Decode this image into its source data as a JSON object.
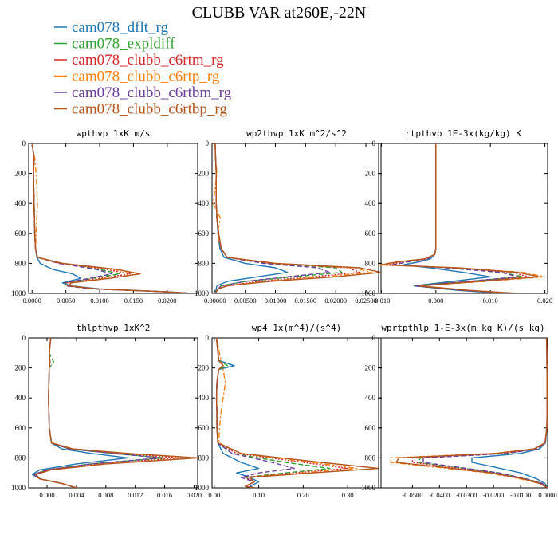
{
  "title": "CLUBB VAR at260E,-22N",
  "legend": [
    {
      "label": "cam078_dflt_rg",
      "color": "#1f77b4",
      "dash": "solid"
    },
    {
      "label": "cam078_expldiff",
      "color": "#2ca02c",
      "dash": "dashed"
    },
    {
      "label": "cam078_clubb_c6rtm_rg",
      "color": "#d62728",
      "dash": "dotted"
    },
    {
      "label": "cam078_clubb_c6rtp_rg",
      "color": "#ff7f0e",
      "dash": "dashdot"
    },
    {
      "label": "cam078_clubb_c6rtbm_rg",
      "color": "#6a3d9a",
      "dash": "dashed"
    },
    {
      "label": "cam078_clubb_c6rtbp_rg",
      "color": "#b5541c",
      "dash": "solid"
    }
  ],
  "chart_data": [
    {
      "type": "line",
      "title": "wpthvp  1xK m/s",
      "xlim": [
        -0.0005,
        0.0245
      ],
      "ylim": [
        1000,
        0
      ],
      "xticks": [
        0.0,
        0.005,
        0.01,
        0.015,
        0.02
      ],
      "xticklabels": [
        "0.0000",
        "0.0050",
        "0.0100",
        "0.0150",
        "0.0200"
      ],
      "yticks": [
        0,
        200,
        400,
        600,
        800,
        1000
      ],
      "y": [
        0,
        100,
        200,
        400,
        600,
        700,
        760,
        800,
        840,
        870,
        900,
        930,
        950,
        970,
        990,
        1000
      ],
      "series": [
        {
          "values": [
            0.0,
            0.0003,
            0.0002,
            0.0003,
            0.0004,
            0.0005,
            0.0007,
            0.0012,
            0.003,
            0.006,
            0.0072,
            0.0045,
            0.0058,
            0.01,
            0.02,
            0.0235
          ]
        },
        {
          "values": [
            0.0,
            0.0003,
            0.0002,
            0.0003,
            0.0004,
            0.0005,
            0.0008,
            0.004,
            0.01,
            0.013,
            0.009,
            0.005,
            0.005,
            0.009,
            0.02,
            0.0235
          ]
        },
        {
          "values": [
            0.0,
            0.0003,
            0.0002,
            0.0003,
            0.0004,
            0.0005,
            0.0008,
            0.004,
            0.011,
            0.0145,
            0.01,
            0.0052,
            0.0052,
            0.0095,
            0.02,
            0.0235
          ]
        },
        {
          "values": [
            0.0,
            0.0004,
            0.0006,
            0.0008,
            0.0006,
            0.0005,
            0.0008,
            0.0045,
            0.012,
            0.0158,
            0.011,
            0.0055,
            0.0055,
            0.0095,
            0.02,
            0.0235
          ]
        },
        {
          "values": [
            0.0,
            0.0003,
            0.0002,
            0.0003,
            0.0004,
            0.0005,
            0.0008,
            0.004,
            0.0095,
            0.0118,
            0.0085,
            0.0048,
            0.005,
            0.009,
            0.02,
            0.0235
          ]
        },
        {
          "values": [
            0.0,
            0.0003,
            0.0002,
            0.0003,
            0.0004,
            0.0005,
            0.0008,
            0.0045,
            0.0125,
            0.016,
            0.0115,
            0.0058,
            0.0055,
            0.0095,
            0.02,
            0.0235
          ]
        }
      ]
    },
    {
      "type": "line",
      "title": "wp2thvp  1xK m^2/s^2",
      "xlim": [
        -0.0005,
        0.0275
      ],
      "ylim": [
        1000,
        0
      ],
      "xticks": [
        0.0,
        0.005,
        0.01,
        0.015,
        0.02,
        0.025
      ],
      "xticklabels": [
        "0.00000",
        "0.00500",
        "0.01000",
        "0.01500",
        "0.02000",
        "0.02500"
      ],
      "yticks": [
        0,
        200,
        400,
        600,
        800,
        1000
      ],
      "y": [
        0,
        100,
        200,
        400,
        500,
        600,
        700,
        760,
        800,
        830,
        860,
        890,
        920,
        950,
        970,
        990,
        1000
      ],
      "series": [
        {
          "values": [
            0.0,
            0.0001,
            0.0002,
            0.0002,
            0.0003,
            0.0005,
            0.0008,
            0.0015,
            0.005,
            0.01,
            0.012,
            0.007,
            0.002,
            0.0003,
            0.0002,
            0.0001,
            0.0
          ]
        },
        {
          "values": [
            0.0,
            0.0001,
            0.0002,
            0.0002,
            0.0003,
            0.0006,
            0.001,
            0.002,
            0.009,
            0.02,
            0.021,
            0.013,
            0.005,
            0.001,
            0.0005,
            0.0002,
            0.0
          ]
        },
        {
          "values": [
            0.0,
            0.0001,
            0.0002,
            0.0002,
            0.0003,
            0.0006,
            0.001,
            0.002,
            0.009,
            0.022,
            0.024,
            0.016,
            0.007,
            0.002,
            0.0005,
            0.0002,
            0.0
          ]
        },
        {
          "values": [
            0.0,
            0.0001,
            0.0003,
            -0.0003,
            0.0009,
            0.0004,
            0.001,
            0.002,
            0.01,
            0.023,
            0.026,
            0.018,
            0.008,
            0.002,
            0.0005,
            0.0002,
            0.0
          ]
        },
        {
          "values": [
            0.0,
            0.0001,
            0.0002,
            0.0002,
            0.0003,
            0.0006,
            0.001,
            0.002,
            0.008,
            0.017,
            0.019,
            0.012,
            0.005,
            0.001,
            0.0005,
            0.0002,
            0.0
          ]
        },
        {
          "values": [
            0.0,
            0.0001,
            0.0002,
            0.0002,
            0.0003,
            0.0006,
            0.001,
            0.002,
            0.01,
            0.024,
            0.0275,
            0.02,
            0.009,
            0.002,
            0.0005,
            0.0002,
            0.0
          ]
        }
      ]
    },
    {
      "type": "line",
      "title": "rtpthvp  1E-3x(kg/kg) K",
      "xlim": [
        -0.0105,
        0.0205
      ],
      "ylim": [
        1000,
        0
      ],
      "xticks": [
        -0.01,
        0.0,
        0.01,
        0.02
      ],
      "xticklabels": [
        "-0.010",
        "0.000",
        "0.010",
        "0.020"
      ],
      "yticks": [
        0,
        200,
        400,
        600,
        800,
        1000
      ],
      "y": [
        0,
        200,
        400,
        600,
        700,
        740,
        770,
        790,
        810,
        830,
        860,
        890,
        920,
        950,
        980,
        1000
      ],
      "series": [
        {
          "values": [
            0.0,
            0.0,
            0.0,
            0.0,
            0.0,
            -0.0002,
            -0.001,
            -0.003,
            -0.006,
            -0.001,
            0.005,
            0.01,
            0.003,
            -0.004,
            0.004,
            0.012
          ]
        },
        {
          "values": [
            0.0,
            0.0,
            0.0,
            0.0,
            0.0,
            -0.0002,
            -0.0015,
            -0.005,
            -0.008,
            0.002,
            0.012,
            0.016,
            0.006,
            -0.004,
            0.005,
            0.014
          ]
        },
        {
          "values": [
            0.0,
            0.0,
            0.0,
            0.0,
            0.0,
            -0.0002,
            -0.0015,
            -0.006,
            -0.009,
            0.003,
            0.014,
            0.017,
            0.007,
            -0.0035,
            0.005,
            0.014
          ]
        },
        {
          "values": [
            0.0,
            0.0,
            0.0,
            0.0,
            0.0,
            -0.0002,
            -0.002,
            -0.007,
            -0.0105,
            0.004,
            0.016,
            0.02,
            0.009,
            -0.003,
            0.006,
            0.015
          ]
        },
        {
          "values": [
            0.0,
            0.0,
            0.0,
            0.0,
            0.0,
            -0.0002,
            -0.0015,
            -0.005,
            -0.008,
            0.002,
            0.012,
            0.015,
            0.006,
            -0.004,
            0.005,
            0.014
          ]
        },
        {
          "values": [
            0.0,
            0.0,
            0.0,
            0.0,
            0.0,
            -0.0002,
            -0.002,
            -0.007,
            -0.01,
            0.004,
            0.015,
            0.019,
            0.008,
            -0.003,
            0.006,
            0.015
          ]
        }
      ]
    },
    {
      "type": "line",
      "title": "thlpthvp  1xK^2",
      "xlim": [
        -0.0025,
        0.0205
      ],
      "ylim": [
        1000,
        0
      ],
      "xticks": [
        0.0,
        0.004,
        0.008,
        0.012,
        0.016,
        0.02
      ],
      "xticklabels": [
        "0.000",
        "0.004",
        "0.008",
        "0.012",
        "0.016",
        "0.020"
      ],
      "yticks": [
        0,
        200,
        400,
        600,
        800,
        1000
      ],
      "y": [
        0,
        100,
        160,
        200,
        400,
        600,
        700,
        740,
        770,
        800,
        840,
        880,
        910,
        940,
        970,
        1000
      ],
      "series": [
        {
          "values": [
            0.0005,
            0.0003,
            0.0004,
            0.0003,
            0.0002,
            0.0003,
            0.0006,
            0.002,
            0.006,
            0.011,
            0.004,
            -0.001,
            -0.002,
            -0.001,
            0.002,
            0.004
          ]
        },
        {
          "values": [
            0.0005,
            0.0003,
            0.0009,
            0.0003,
            0.0002,
            0.0003,
            0.0006,
            0.003,
            0.009,
            0.016,
            0.006,
            0.0,
            -0.0018,
            -0.001,
            0.002,
            0.004
          ]
        },
        {
          "values": [
            0.0005,
            0.0003,
            0.0004,
            0.0003,
            0.0002,
            0.0003,
            0.0006,
            0.003,
            0.01,
            0.018,
            0.007,
            0.0,
            -0.0018,
            -0.001,
            0.002,
            0.004
          ]
        },
        {
          "values": [
            0.0005,
            0.0003,
            0.0004,
            0.0003,
            0.0002,
            0.0003,
            0.0006,
            0.0035,
            0.011,
            0.0205,
            0.008,
            0.0005,
            -0.0015,
            -0.001,
            0.002,
            0.004
          ]
        },
        {
          "values": [
            0.0005,
            0.0003,
            0.0004,
            0.0003,
            0.0002,
            0.0003,
            0.0006,
            0.003,
            0.009,
            0.0155,
            0.006,
            0.0,
            -0.0018,
            -0.001,
            0.002,
            0.004
          ]
        },
        {
          "values": [
            0.0005,
            0.0003,
            0.0004,
            0.0003,
            0.0002,
            0.0003,
            0.0006,
            0.0035,
            0.011,
            0.0205,
            0.008,
            0.0005,
            -0.0015,
            -0.001,
            0.002,
            0.004
          ]
        }
      ]
    },
    {
      "type": "line",
      "title": "wp4  1x(m^4)/(s^4)",
      "xlim": [
        -0.005,
        0.375
      ],
      "ylim": [
        1000,
        0
      ],
      "xticks": [
        0.0,
        0.1,
        0.2,
        0.3
      ],
      "xticklabels": [
        "0.00",
        "0.10",
        "0.20",
        "0.30"
      ],
      "yticks": [
        0,
        200,
        400,
        600,
        800,
        1000
      ],
      "y": [
        0,
        150,
        185,
        210,
        300,
        400,
        500,
        600,
        700,
        770,
        830,
        870,
        900,
        930,
        960,
        990,
        1000
      ],
      "series": [
        {
          "values": [
            0.005,
            0.01,
            0.045,
            0.01,
            0.006,
            0.005,
            0.006,
            0.006,
            0.008,
            0.02,
            0.06,
            0.1,
            0.05,
            0.08,
            0.1,
            0.08,
            0.09
          ]
        },
        {
          "values": [
            0.005,
            0.01,
            0.03,
            0.01,
            0.006,
            0.005,
            0.006,
            0.006,
            0.008,
            0.04,
            0.16,
            0.26,
            0.16,
            0.07,
            0.09,
            0.07,
            0.09
          ]
        },
        {
          "values": [
            0.005,
            0.01,
            0.02,
            0.01,
            0.006,
            0.005,
            0.006,
            0.006,
            0.008,
            0.05,
            0.2,
            0.3,
            0.18,
            0.07,
            0.09,
            0.07,
            0.09
          ]
        },
        {
          "values": [
            0.005,
            0.015,
            0.02,
            0.02,
            0.025,
            0.02,
            0.015,
            0.012,
            0.01,
            0.06,
            0.22,
            0.32,
            0.2,
            0.08,
            0.09,
            0.07,
            0.09
          ]
        },
        {
          "values": [
            0.005,
            0.01,
            0.02,
            0.01,
            0.006,
            0.005,
            0.006,
            0.006,
            0.008,
            0.04,
            0.13,
            0.18,
            0.1,
            0.06,
            0.09,
            0.07,
            0.09
          ]
        },
        {
          "values": [
            0.005,
            0.01,
            0.02,
            0.01,
            0.006,
            0.005,
            0.006,
            0.006,
            0.008,
            0.06,
            0.24,
            0.37,
            0.22,
            0.08,
            0.09,
            0.07,
            0.09
          ]
        }
      ]
    },
    {
      "type": "line",
      "title": "wprtpthlp  1-E-3x(m kg K)/(s kg)",
      "xlim": [
        -0.0625,
        0.0
      ],
      "ylim": [
        1000,
        0
      ],
      "xticks": [
        -0.05,
        -0.04,
        -0.03,
        -0.02,
        -0.01,
        0.0
      ],
      "xticklabels": [
        "-0.0500",
        "-0.0400",
        "-0.0300",
        "-0.0200",
        "-0.0100",
        "0.0000"
      ],
      "yticks": [
        0,
        200,
        400,
        600,
        800,
        1000
      ],
      "y": [
        0,
        100,
        300,
        500,
        600,
        700,
        740,
        770,
        800,
        830,
        860,
        900,
        940,
        970,
        1000
      ],
      "series": [
        {
          "values": [
            -0.0004,
            -0.0003,
            -0.0002,
            -0.0002,
            -0.0003,
            -0.0008,
            -0.003,
            -0.01,
            -0.028,
            -0.028,
            -0.02,
            -0.01,
            -0.004,
            -0.001,
            0.0
          ]
        },
        {
          "values": [
            -0.0004,
            -0.0003,
            -0.0002,
            -0.0002,
            -0.0003,
            -0.0009,
            -0.004,
            -0.015,
            -0.047,
            -0.048,
            -0.035,
            -0.018,
            -0.008,
            -0.002,
            0.0
          ]
        },
        {
          "values": [
            -0.0004,
            -0.0003,
            -0.0002,
            -0.0002,
            -0.0003,
            -0.0009,
            -0.004,
            -0.016,
            -0.05,
            -0.05,
            -0.037,
            -0.02,
            -0.009,
            -0.002,
            0.0
          ]
        },
        {
          "values": [
            -0.0004,
            -0.0003,
            -0.0002,
            -0.0002,
            -0.0003,
            -0.001,
            -0.005,
            -0.02,
            -0.058,
            -0.058,
            -0.042,
            -0.022,
            -0.01,
            -0.003,
            0.0
          ]
        },
        {
          "values": [
            -0.0004,
            -0.0003,
            -0.0002,
            -0.0002,
            -0.0003,
            -0.0009,
            -0.004,
            -0.015,
            -0.046,
            -0.046,
            -0.034,
            -0.018,
            -0.008,
            -0.002,
            0.0
          ]
        },
        {
          "values": [
            -0.0004,
            -0.0003,
            -0.0002,
            -0.0002,
            -0.0003,
            -0.001,
            -0.005,
            -0.019,
            -0.055,
            -0.056,
            -0.04,
            -0.021,
            -0.009,
            -0.003,
            0.0
          ]
        }
      ]
    }
  ]
}
